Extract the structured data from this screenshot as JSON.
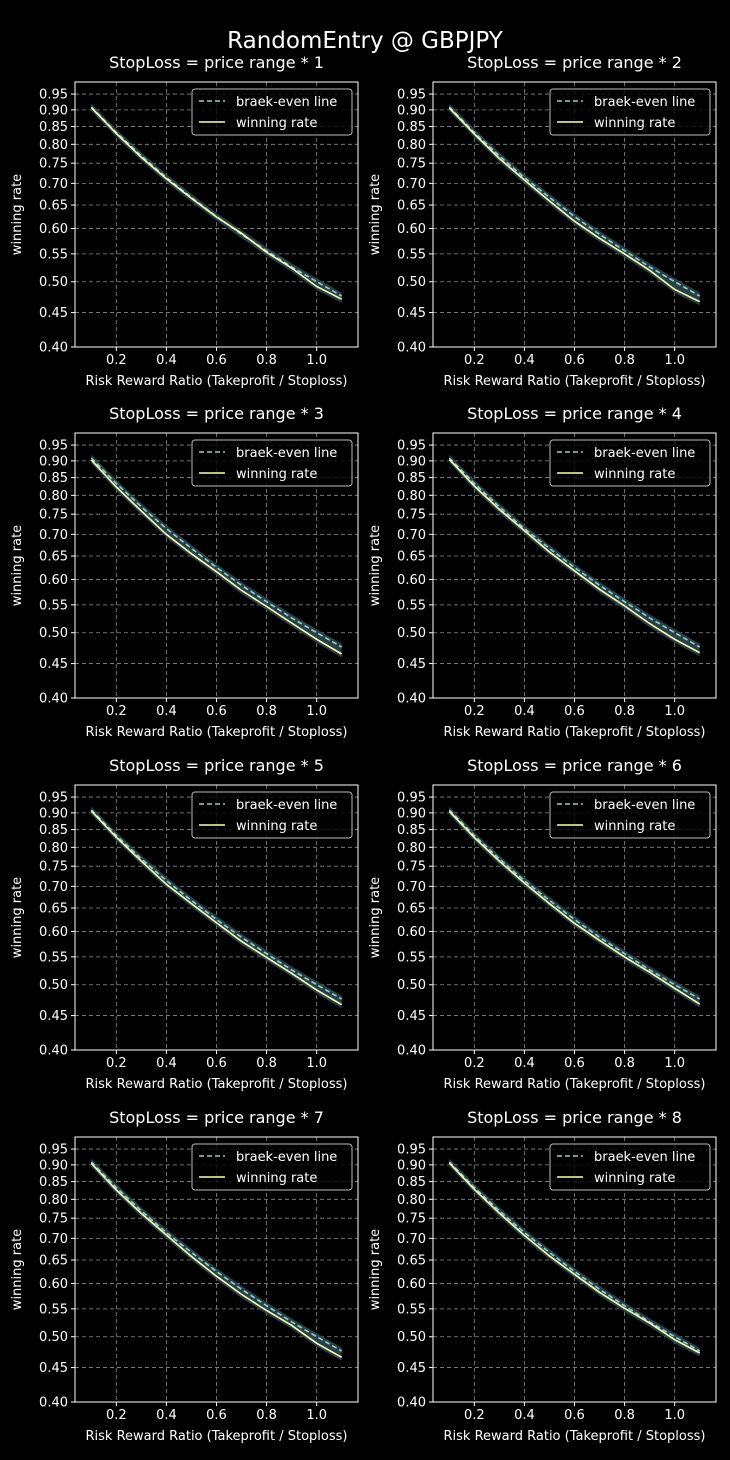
{
  "figure_title": "RandomEntry @ GBPJPY",
  "colors": {
    "background": "#000000",
    "break_even": "#8dd3c7",
    "winning": "#feffb3",
    "band": "#2f4a55",
    "grid": "#8a8a8a",
    "text": "#ffffff"
  },
  "chart_data": [
    {
      "type": "line",
      "title": "StopLoss = price range * 1",
      "xlabel": "Risk Reward Ratio (Takeprofit / Stoploss)",
      "ylabel": "winning rate",
      "x": [
        0.1,
        0.2,
        0.3,
        0.4,
        0.5,
        0.6,
        0.7,
        0.8,
        0.9,
        1.0,
        1.1
      ],
      "xticks": [
        "0.2",
        "0.4",
        "0.6",
        "0.8",
        "1.0"
      ],
      "yticks": [
        "0.40",
        "0.45",
        "0.50",
        "0.55",
        "0.60",
        "0.65",
        "0.70",
        "0.75",
        "0.80",
        "0.85",
        "0.90",
        "0.95"
      ],
      "xlim": [
        0.035,
        1.165
      ],
      "ylim": [
        0.4,
        0.99
      ],
      "yscale": "log",
      "grid": true,
      "legend_position": "top-right",
      "series": [
        {
          "name": "braek-even line",
          "style": "dashed",
          "values": [
            0.909,
            0.833,
            0.769,
            0.714,
            0.667,
            0.625,
            0.588,
            0.556,
            0.526,
            0.5,
            0.476
          ]
        },
        {
          "name": "winning rate",
          "style": "solid",
          "values": [
            0.907,
            0.83,
            0.765,
            0.711,
            0.665,
            0.624,
            0.59,
            0.553,
            0.524,
            0.492,
            0.471
          ]
        }
      ]
    },
    {
      "type": "line",
      "title": "StopLoss = price range * 2",
      "xlabel": "Risk Reward Ratio (Takeprofit / Stoploss)",
      "ylabel": "winning rate",
      "x": [
        0.1,
        0.2,
        0.3,
        0.4,
        0.5,
        0.6,
        0.7,
        0.8,
        0.9,
        1.0,
        1.1
      ],
      "xticks": [
        "0.2",
        "0.4",
        "0.6",
        "0.8",
        "1.0"
      ],
      "yticks": [
        "0.40",
        "0.45",
        "0.50",
        "0.55",
        "0.60",
        "0.65",
        "0.70",
        "0.75",
        "0.80",
        "0.85",
        "0.90",
        "0.95"
      ],
      "xlim": [
        0.035,
        1.165
      ],
      "ylim": [
        0.4,
        0.99
      ],
      "yscale": "log",
      "grid": true,
      "legend_position": "top-right",
      "series": [
        {
          "name": "braek-even line",
          "style": "dashed",
          "values": [
            0.909,
            0.833,
            0.769,
            0.714,
            0.667,
            0.625,
            0.588,
            0.556,
            0.526,
            0.5,
            0.476
          ]
        },
        {
          "name": "winning rate",
          "style": "solid",
          "values": [
            0.906,
            0.829,
            0.762,
            0.708,
            0.659,
            0.615,
            0.58,
            0.55,
            0.52,
            0.487,
            0.467
          ]
        }
      ]
    },
    {
      "type": "line",
      "title": "StopLoss = price range * 3",
      "xlabel": "Risk Reward Ratio (Takeprofit / Stoploss)",
      "ylabel": "winning rate",
      "x": [
        0.1,
        0.2,
        0.3,
        0.4,
        0.5,
        0.6,
        0.7,
        0.8,
        0.9,
        1.0,
        1.1
      ],
      "xticks": [
        "0.2",
        "0.4",
        "0.6",
        "0.8",
        "1.0"
      ],
      "yticks": [
        "0.40",
        "0.45",
        "0.50",
        "0.55",
        "0.60",
        "0.65",
        "0.70",
        "0.75",
        "0.80",
        "0.85",
        "0.90",
        "0.95"
      ],
      "xlim": [
        0.035,
        1.165
      ],
      "ylim": [
        0.4,
        0.99
      ],
      "yscale": "log",
      "grid": true,
      "legend_position": "top-right",
      "series": [
        {
          "name": "braek-even line",
          "style": "dashed",
          "values": [
            0.909,
            0.833,
            0.769,
            0.714,
            0.667,
            0.625,
            0.588,
            0.556,
            0.526,
            0.5,
            0.476
          ]
        },
        {
          "name": "winning rate",
          "style": "solid",
          "values": [
            0.903,
            0.823,
            0.758,
            0.7,
            0.655,
            0.616,
            0.578,
            0.547,
            0.517,
            0.489,
            0.465
          ]
        }
      ]
    },
    {
      "type": "line",
      "title": "StopLoss = price range * 4",
      "xlabel": "Risk Reward Ratio (Takeprofit / Stoploss)",
      "ylabel": "winning rate",
      "x": [
        0.1,
        0.2,
        0.3,
        0.4,
        0.5,
        0.6,
        0.7,
        0.8,
        0.9,
        1.0,
        1.1
      ],
      "xticks": [
        "0.2",
        "0.4",
        "0.6",
        "0.8",
        "1.0"
      ],
      "yticks": [
        "0.40",
        "0.45",
        "0.50",
        "0.55",
        "0.60",
        "0.65",
        "0.70",
        "0.75",
        "0.80",
        "0.85",
        "0.90",
        "0.95"
      ],
      "xlim": [
        0.035,
        1.165
      ],
      "ylim": [
        0.4,
        0.99
      ],
      "yscale": "log",
      "grid": true,
      "legend_position": "top-right",
      "series": [
        {
          "name": "braek-even line",
          "style": "dashed",
          "values": [
            0.909,
            0.833,
            0.769,
            0.714,
            0.667,
            0.625,
            0.588,
            0.556,
            0.526,
            0.5,
            0.476
          ]
        },
        {
          "name": "winning rate",
          "style": "solid",
          "values": [
            0.905,
            0.826,
            0.762,
            0.709,
            0.659,
            0.618,
            0.58,
            0.548,
            0.516,
            0.489,
            0.467
          ]
        }
      ]
    },
    {
      "type": "line",
      "title": "StopLoss = price range * 5",
      "xlabel": "Risk Reward Ratio (Takeprofit / Stoploss)",
      "ylabel": "winning rate",
      "x": [
        0.1,
        0.2,
        0.3,
        0.4,
        0.5,
        0.6,
        0.7,
        0.8,
        0.9,
        1.0,
        1.1
      ],
      "xticks": [
        "0.2",
        "0.4",
        "0.6",
        "0.8",
        "1.0"
      ],
      "yticks": [
        "0.40",
        "0.45",
        "0.50",
        "0.55",
        "0.60",
        "0.65",
        "0.70",
        "0.75",
        "0.80",
        "0.85",
        "0.90",
        "0.95"
      ],
      "xlim": [
        0.035,
        1.165
      ],
      "ylim": [
        0.4,
        0.99
      ],
      "yscale": "log",
      "grid": true,
      "legend_position": "top-right",
      "series": [
        {
          "name": "braek-even line",
          "style": "dashed",
          "values": [
            0.909,
            0.833,
            0.769,
            0.714,
            0.667,
            0.625,
            0.588,
            0.556,
            0.526,
            0.5,
            0.476
          ]
        },
        {
          "name": "winning rate",
          "style": "solid",
          "values": [
            0.906,
            0.828,
            0.763,
            0.705,
            0.66,
            0.618,
            0.58,
            0.549,
            0.52,
            0.491,
            0.467
          ]
        }
      ]
    },
    {
      "type": "line",
      "title": "StopLoss = price range * 6",
      "xlabel": "Risk Reward Ratio (Takeprofit / Stoploss)",
      "ylabel": "winning rate",
      "x": [
        0.1,
        0.2,
        0.3,
        0.4,
        0.5,
        0.6,
        0.7,
        0.8,
        0.9,
        1.0,
        1.1
      ],
      "xticks": [
        "0.2",
        "0.4",
        "0.6",
        "0.8",
        "1.0"
      ],
      "yticks": [
        "0.40",
        "0.45",
        "0.50",
        "0.55",
        "0.60",
        "0.65",
        "0.70",
        "0.75",
        "0.80",
        "0.85",
        "0.90",
        "0.95"
      ],
      "xlim": [
        0.035,
        1.165
      ],
      "ylim": [
        0.4,
        0.99
      ],
      "yscale": "log",
      "grid": true,
      "legend_position": "top-right",
      "series": [
        {
          "name": "braek-even line",
          "style": "dashed",
          "values": [
            0.909,
            0.833,
            0.769,
            0.714,
            0.667,
            0.625,
            0.588,
            0.556,
            0.526,
            0.5,
            0.476
          ]
        },
        {
          "name": "winning rate",
          "style": "solid",
          "values": [
            0.905,
            0.827,
            0.763,
            0.708,
            0.66,
            0.617,
            0.582,
            0.55,
            0.522,
            0.494,
            0.468
          ]
        }
      ]
    },
    {
      "type": "line",
      "title": "StopLoss = price range * 7",
      "xlabel": "Risk Reward Ratio (Takeprofit / Stoploss)",
      "ylabel": "winning rate",
      "x": [
        0.1,
        0.2,
        0.3,
        0.4,
        0.5,
        0.6,
        0.7,
        0.8,
        0.9,
        1.0,
        1.1
      ],
      "xticks": [
        "0.2",
        "0.4",
        "0.6",
        "0.8",
        "1.0"
      ],
      "yticks": [
        "0.40",
        "0.45",
        "0.50",
        "0.55",
        "0.60",
        "0.65",
        "0.70",
        "0.75",
        "0.80",
        "0.85",
        "0.90",
        "0.95"
      ],
      "xlim": [
        0.035,
        1.165
      ],
      "ylim": [
        0.4,
        0.99
      ],
      "yscale": "log",
      "grid": true,
      "legend_position": "top-right",
      "series": [
        {
          "name": "braek-even line",
          "style": "dashed",
          "values": [
            0.909,
            0.833,
            0.769,
            0.714,
            0.667,
            0.625,
            0.588,
            0.556,
            0.526,
            0.5,
            0.476
          ]
        },
        {
          "name": "winning rate",
          "style": "solid",
          "values": [
            0.905,
            0.826,
            0.762,
            0.708,
            0.658,
            0.615,
            0.578,
            0.547,
            0.52,
            0.489,
            0.466
          ]
        }
      ]
    },
    {
      "type": "line",
      "title": "StopLoss = price range * 8",
      "xlabel": "Risk Reward Ratio (Takeprofit / Stoploss)",
      "ylabel": "winning rate",
      "x": [
        0.1,
        0.2,
        0.3,
        0.4,
        0.5,
        0.6,
        0.7,
        0.8,
        0.9,
        1.0,
        1.1
      ],
      "xticks": [
        "0.2",
        "0.4",
        "0.6",
        "0.8",
        "1.0"
      ],
      "yticks": [
        "0.40",
        "0.45",
        "0.50",
        "0.55",
        "0.60",
        "0.65",
        "0.70",
        "0.75",
        "0.80",
        "0.85",
        "0.90",
        "0.95"
      ],
      "xlim": [
        0.035,
        1.165
      ],
      "ylim": [
        0.4,
        0.99
      ],
      "yscale": "log",
      "grid": true,
      "legend_position": "top-right",
      "series": [
        {
          "name": "braek-even line",
          "style": "dashed",
          "values": [
            0.909,
            0.833,
            0.769,
            0.714,
            0.667,
            0.625,
            0.588,
            0.556,
            0.526,
            0.5,
            0.476
          ]
        },
        {
          "name": "winning rate",
          "style": "solid",
          "values": [
            0.906,
            0.828,
            0.763,
            0.707,
            0.659,
            0.619,
            0.582,
            0.551,
            0.524,
            0.495,
            0.473
          ]
        }
      ]
    }
  ]
}
